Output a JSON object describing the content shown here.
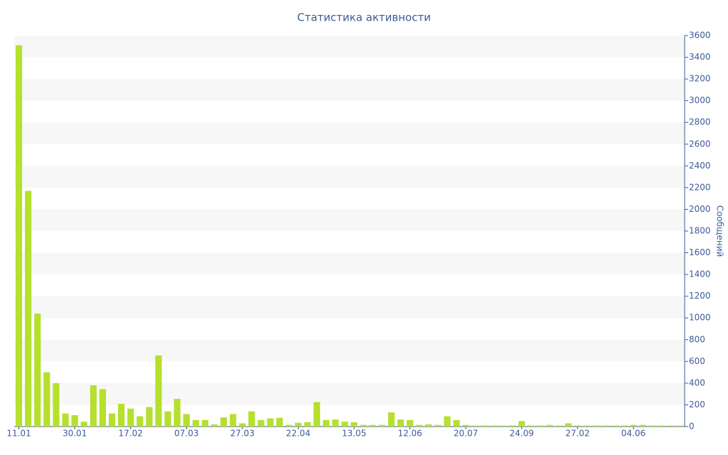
{
  "chart_data": {
    "type": "bar",
    "title": "Статистика активности",
    "y_axis_label": "Сообщений",
    "categories": [
      "11.01",
      null,
      null,
      null,
      null,
      null,
      "30.01",
      null,
      null,
      null,
      null,
      null,
      "17.02",
      null,
      null,
      null,
      null,
      null,
      "07.03",
      null,
      null,
      null,
      null,
      null,
      "27.03",
      null,
      null,
      null,
      null,
      null,
      "22.04",
      null,
      null,
      null,
      null,
      null,
      "13.05",
      null,
      null,
      null,
      null,
      null,
      "12.06",
      null,
      null,
      null,
      null,
      null,
      "20.07",
      null,
      null,
      null,
      null,
      null,
      "24.09",
      null,
      null,
      null,
      null,
      null,
      "27.02",
      null,
      null,
      null,
      null,
      null,
      "04.06",
      null,
      null,
      null,
      null,
      null
    ],
    "values": [
      3510,
      2170,
      1040,
      500,
      400,
      120,
      105,
      45,
      380,
      345,
      120,
      210,
      165,
      95,
      180,
      655,
      140,
      255,
      115,
      60,
      60,
      20,
      85,
      115,
      30,
      140,
      60,
      75,
      80,
      15,
      35,
      40,
      225,
      60,
      65,
      45,
      40,
      15,
      15,
      15,
      130,
      65,
      60,
      15,
      20,
      15,
      95,
      60,
      15,
      10,
      10,
      10,
      10,
      10,
      50,
      10,
      10,
      15,
      10,
      30,
      10,
      10,
      10,
      10,
      10,
      10,
      15,
      15,
      10,
      10,
      10,
      10
    ],
    "color": "#b5e02d",
    "ylim": [
      0,
      3600
    ],
    "yticks": [
      0,
      200,
      400,
      600,
      800,
      1000,
      1200,
      1400,
      1600,
      1800,
      2000,
      2200,
      2400,
      2600,
      2800,
      3000,
      3200,
      3400,
      3600
    ],
    "grid": true,
    "y_axis_side": "right"
  }
}
